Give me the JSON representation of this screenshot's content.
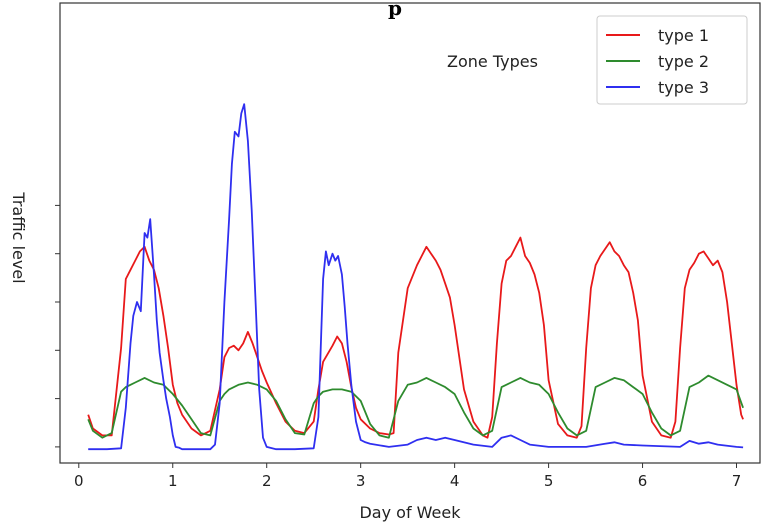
{
  "chart_data": {
    "type": "line",
    "title": "p",
    "xlabel": "Day of Week",
    "ylabel": "Traffic level",
    "xlim": [
      -0.2,
      7.25
    ],
    "ylim": [
      0,
      10
    ],
    "x_ticks": [
      0,
      1,
      2,
      3,
      4,
      5,
      6,
      7
    ],
    "x_tick_labels": [
      "0",
      "1",
      "2",
      "3",
      "4",
      "5",
      "6",
      "7"
    ],
    "y_ticks": [
      0.35,
      1.4,
      2.45,
      3.5,
      4.55,
      5.6
    ],
    "y_tick_labels": [],
    "grid": false,
    "legend": {
      "title": "Zone Types",
      "position": "top-right",
      "entries": [
        "type 1",
        "type 2",
        "type 3"
      ]
    },
    "series": [
      {
        "name": "type 1",
        "color": "#e8191a",
        "x": [
          0.1,
          0.15,
          0.25,
          0.35,
          0.45,
          0.5,
          0.55,
          0.6,
          0.65,
          0.7,
          0.75,
          0.8,
          0.85,
          0.9,
          0.95,
          1.0,
          1.05,
          1.1,
          1.2,
          1.3,
          1.4,
          1.5,
          1.55,
          1.6,
          1.65,
          1.7,
          1.75,
          1.8,
          1.85,
          1.9,
          1.95,
          2.0,
          2.1,
          2.2,
          2.3,
          2.4,
          2.5,
          2.55,
          2.6,
          2.7,
          2.75,
          2.8,
          2.85,
          2.9,
          2.95,
          3.0,
          3.1,
          3.2,
          3.3,
          3.35,
          3.4,
          3.5,
          3.6,
          3.65,
          3.7,
          3.75,
          3.8,
          3.85,
          3.9,
          3.95,
          4.0,
          4.1,
          4.2,
          4.3,
          4.35,
          4.4,
          4.45,
          4.5,
          4.55,
          4.6,
          4.65,
          4.7,
          4.75,
          4.8,
          4.85,
          4.9,
          4.95,
          5.0,
          5.1,
          5.2,
          5.3,
          5.35,
          5.4,
          5.45,
          5.5,
          5.55,
          5.6,
          5.65,
          5.7,
          5.75,
          5.8,
          5.85,
          5.9,
          5.95,
          6.0,
          6.1,
          6.2,
          6.3,
          6.35,
          6.4,
          6.45,
          6.5,
          6.55,
          6.6,
          6.65,
          6.7,
          6.75,
          6.8,
          6.85,
          6.9,
          6.95,
          7.0,
          7.05,
          7.07
        ],
        "values": [
          1.05,
          0.75,
          0.6,
          0.6,
          2.5,
          4.0,
          4.2,
          4.4,
          4.6,
          4.7,
          4.4,
          4.2,
          3.8,
          3.2,
          2.5,
          1.7,
          1.3,
          1.05,
          0.75,
          0.6,
          0.7,
          1.6,
          2.3,
          2.5,
          2.55,
          2.45,
          2.6,
          2.85,
          2.6,
          2.3,
          2.0,
          1.75,
          1.3,
          0.9,
          0.7,
          0.65,
          0.9,
          1.6,
          2.2,
          2.55,
          2.75,
          2.6,
          2.2,
          1.65,
          1.2,
          0.95,
          0.75,
          0.65,
          0.62,
          0.65,
          2.4,
          3.8,
          4.3,
          4.5,
          4.7,
          4.55,
          4.4,
          4.2,
          3.9,
          3.6,
          3.0,
          1.6,
          0.9,
          0.6,
          0.55,
          1.0,
          2.6,
          3.9,
          4.4,
          4.5,
          4.7,
          4.9,
          4.5,
          4.35,
          4.1,
          3.7,
          3.0,
          1.8,
          0.85,
          0.6,
          0.55,
          0.8,
          2.5,
          3.8,
          4.3,
          4.5,
          4.65,
          4.8,
          4.6,
          4.5,
          4.3,
          4.15,
          3.7,
          3.1,
          1.9,
          0.9,
          0.6,
          0.55,
          0.9,
          2.5,
          3.8,
          4.2,
          4.35,
          4.55,
          4.6,
          4.45,
          4.3,
          4.4,
          4.15,
          3.5,
          2.6,
          1.7,
          1.05,
          0.95
        ]
      },
      {
        "name": "type 2",
        "color": "#2e8b2e",
        "x": [
          0.1,
          0.15,
          0.25,
          0.35,
          0.45,
          0.5,
          0.55,
          0.6,
          0.7,
          0.8,
          0.9,
          1.0,
          1.1,
          1.2,
          1.3,
          1.4,
          1.5,
          1.55,
          1.6,
          1.7,
          1.8,
          1.9,
          2.0,
          2.1,
          2.2,
          2.3,
          2.4,
          2.5,
          2.55,
          2.6,
          2.7,
          2.8,
          2.9,
          3.0,
          3.1,
          3.2,
          3.3,
          3.4,
          3.5,
          3.6,
          3.7,
          3.8,
          3.9,
          4.0,
          4.1,
          4.2,
          4.3,
          4.4,
          4.5,
          4.6,
          4.7,
          4.8,
          4.9,
          5.0,
          5.1,
          5.2,
          5.3,
          5.4,
          5.5,
          5.6,
          5.7,
          5.8,
          5.9,
          6.0,
          6.1,
          6.2,
          6.3,
          6.4,
          6.5,
          6.6,
          6.7,
          6.8,
          6.9,
          7.0,
          7.07
        ],
        "values": [
          0.95,
          0.7,
          0.55,
          0.65,
          1.55,
          1.65,
          1.7,
          1.75,
          1.85,
          1.75,
          1.7,
          1.5,
          1.25,
          0.95,
          0.65,
          0.6,
          1.35,
          1.5,
          1.6,
          1.7,
          1.75,
          1.7,
          1.6,
          1.35,
          0.95,
          0.65,
          0.62,
          1.3,
          1.45,
          1.55,
          1.6,
          1.6,
          1.55,
          1.35,
          0.85,
          0.6,
          0.55,
          1.35,
          1.7,
          1.75,
          1.85,
          1.75,
          1.65,
          1.5,
          1.1,
          0.75,
          0.6,
          0.7,
          1.65,
          1.75,
          1.85,
          1.75,
          1.7,
          1.5,
          1.1,
          0.75,
          0.6,
          0.7,
          1.65,
          1.75,
          1.85,
          1.8,
          1.65,
          1.5,
          1.1,
          0.75,
          0.6,
          0.7,
          1.65,
          1.75,
          1.9,
          1.8,
          1.7,
          1.6,
          1.2
        ]
      },
      {
        "name": "type 3",
        "color": "#2f2ff0",
        "x": [
          0.1,
          0.3,
          0.45,
          0.5,
          0.55,
          0.58,
          0.62,
          0.66,
          0.7,
          0.73,
          0.76,
          0.8,
          0.83,
          0.86,
          0.9,
          0.93,
          0.97,
          1.0,
          1.03,
          1.07,
          1.1,
          1.2,
          1.3,
          1.4,
          1.45,
          1.5,
          1.55,
          1.6,
          1.63,
          1.66,
          1.7,
          1.73,
          1.76,
          1.8,
          1.84,
          1.88,
          1.92,
          1.96,
          2.0,
          2.1,
          2.3,
          2.5,
          2.55,
          2.58,
          2.6,
          2.63,
          2.66,
          2.7,
          2.73,
          2.76,
          2.8,
          2.83,
          2.86,
          2.9,
          2.95,
          3.0,
          3.05,
          3.1,
          3.3,
          3.5,
          3.6,
          3.7,
          3.8,
          3.9,
          4.0,
          4.2,
          4.4,
          4.5,
          4.6,
          4.7,
          4.8,
          5.0,
          5.4,
          5.6,
          5.7,
          5.8,
          6.0,
          6.4,
          6.5,
          6.6,
          6.7,
          6.8,
          7.0,
          7.07
        ],
        "values": [
          0.3,
          0.3,
          0.32,
          1.2,
          2.6,
          3.2,
          3.5,
          3.3,
          5.0,
          4.9,
          5.3,
          4.1,
          3.1,
          2.4,
          1.8,
          1.4,
          1.0,
          0.6,
          0.35,
          0.33,
          0.3,
          0.3,
          0.3,
          0.3,
          0.4,
          1.3,
          3.5,
          5.3,
          6.5,
          7.2,
          7.1,
          7.6,
          7.8,
          7.0,
          5.5,
          3.6,
          1.6,
          0.55,
          0.35,
          0.3,
          0.3,
          0.32,
          1.0,
          2.8,
          4.0,
          4.6,
          4.3,
          4.55,
          4.4,
          4.5,
          4.1,
          3.4,
          2.6,
          1.7,
          0.9,
          0.5,
          0.45,
          0.42,
          0.35,
          0.4,
          0.5,
          0.55,
          0.5,
          0.55,
          0.5,
          0.4,
          0.35,
          0.55,
          0.6,
          0.5,
          0.4,
          0.35,
          0.35,
          0.42,
          0.45,
          0.4,
          0.38,
          0.35,
          0.48,
          0.42,
          0.45,
          0.4,
          0.35,
          0.34
        ]
      }
    ]
  }
}
